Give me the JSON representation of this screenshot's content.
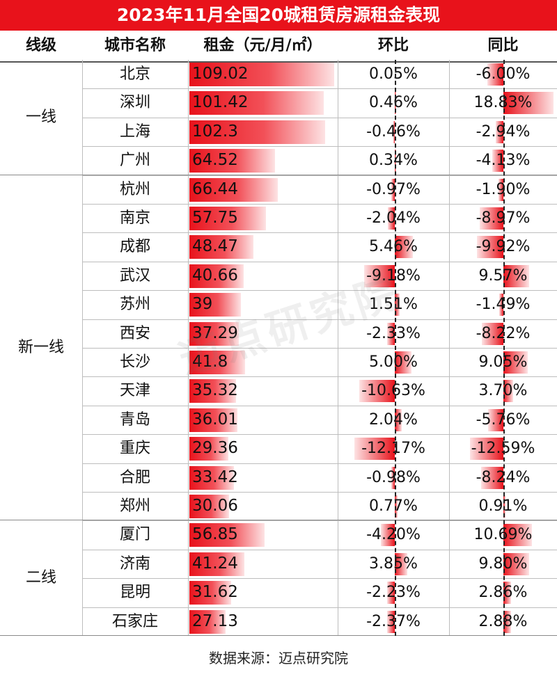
{
  "title": "2023年11月全国20城租赁房源租金表现",
  "headers": {
    "tier": "线级",
    "city": "城市名称",
    "rent": "租金（元/月/㎡）",
    "mom": "环比",
    "yoy": "同比"
  },
  "tiers": [
    {
      "label": "一线",
      "rows": 4
    },
    {
      "label": "新一线",
      "rows": 12
    },
    {
      "label": "二线",
      "rows": 4
    }
  ],
  "chart_data": {
    "type": "table",
    "columns": [
      "线级",
      "城市名称",
      "租金（元/月/㎡）",
      "环比",
      "同比"
    ],
    "rows": [
      {
        "city": "北京",
        "rent": 109.02,
        "rent_text": "109.02",
        "mom": 0.05,
        "mom_text": "0.05%",
        "yoy": -6.0,
        "yoy_text": "-6.00%"
      },
      {
        "city": "深圳",
        "rent": 101.42,
        "rent_text": "101.42",
        "mom": 0.46,
        "mom_text": "0.46%",
        "yoy": 18.83,
        "yoy_text": "18.83%"
      },
      {
        "city": "上海",
        "rent": 102.3,
        "rent_text": "102.3",
        "mom": -0.46,
        "mom_text": "-0.46%",
        "yoy": -2.94,
        "yoy_text": "-2.94%"
      },
      {
        "city": "广州",
        "rent": 64.52,
        "rent_text": "64.52",
        "mom": 0.34,
        "mom_text": "0.34%",
        "yoy": -4.13,
        "yoy_text": "-4.13%"
      },
      {
        "city": "杭州",
        "rent": 66.44,
        "rent_text": "66.44",
        "mom": -0.97,
        "mom_text": "-0.97%",
        "yoy": -1.9,
        "yoy_text": "-1.90%"
      },
      {
        "city": "南京",
        "rent": 57.75,
        "rent_text": "57.75",
        "mom": -2.04,
        "mom_text": "-2.04%",
        "yoy": -8.97,
        "yoy_text": "-8.97%"
      },
      {
        "city": "成都",
        "rent": 48.47,
        "rent_text": "48.47",
        "mom": 5.46,
        "mom_text": "5.46%",
        "yoy": -9.92,
        "yoy_text": "-9.92%"
      },
      {
        "city": "武汉",
        "rent": 40.66,
        "rent_text": "40.66",
        "mom": -9.18,
        "mom_text": "-9.18%",
        "yoy": 9.57,
        "yoy_text": "9.57%"
      },
      {
        "city": "苏州",
        "rent": 39,
        "rent_text": "39",
        "mom": 1.51,
        "mom_text": "1.51%",
        "yoy": -1.49,
        "yoy_text": "-1.49%"
      },
      {
        "city": "西安",
        "rent": 37.29,
        "rent_text": "37.29",
        "mom": -2.33,
        "mom_text": "-2.33%",
        "yoy": -8.22,
        "yoy_text": "-8.22%"
      },
      {
        "city": "长沙",
        "rent": 41.8,
        "rent_text": "41.8",
        "mom": 5.0,
        "mom_text": "5.00%",
        "yoy": 9.05,
        "yoy_text": "9.05%"
      },
      {
        "city": "天津",
        "rent": 35.32,
        "rent_text": "35.32",
        "mom": -10.63,
        "mom_text": "-10.63%",
        "yoy": 3.7,
        "yoy_text": "3.70%"
      },
      {
        "city": "青岛",
        "rent": 36.01,
        "rent_text": "36.01",
        "mom": 2.04,
        "mom_text": "2.04%",
        "yoy": -5.76,
        "yoy_text": "-5.76%"
      },
      {
        "city": "重庆",
        "rent": 29.36,
        "rent_text": "29.36",
        "mom": -12.17,
        "mom_text": "-12.17%",
        "yoy": -12.59,
        "yoy_text": "-12.59%"
      },
      {
        "city": "合肥",
        "rent": 33.42,
        "rent_text": "33.42",
        "mom": -0.98,
        "mom_text": "-0.98%",
        "yoy": -8.24,
        "yoy_text": "-8.24%"
      },
      {
        "city": "郑州",
        "rent": 30.06,
        "rent_text": "30.06",
        "mom": 0.77,
        "mom_text": "0.77%",
        "yoy": 0.91,
        "yoy_text": "0.91%"
      },
      {
        "city": "厦门",
        "rent": 56.85,
        "rent_text": "56.85",
        "mom": -4.2,
        "mom_text": "-4.20%",
        "yoy": 10.69,
        "yoy_text": "10.69%"
      },
      {
        "city": "济南",
        "rent": 41.24,
        "rent_text": "41.24",
        "mom": 3.85,
        "mom_text": "3.85%",
        "yoy": 9.8,
        "yoy_text": "9.80%"
      },
      {
        "city": "昆明",
        "rent": 31.62,
        "rent_text": "31.62",
        "mom": -2.23,
        "mom_text": "-2.23%",
        "yoy": 2.86,
        "yoy_text": "2.86%"
      },
      {
        "city": "石家庄",
        "rent": 27.13,
        "rent_text": "27.13",
        "mom": -2.37,
        "mom_text": "-2.37%",
        "yoy": 2.88,
        "yoy_text": "2.88%"
      }
    ]
  },
  "colors": {
    "accent": "#e8121b",
    "bar": "#ee1c25"
  },
  "watermark": "迈点研究院",
  "source": "数据来源：迈点研究院"
}
